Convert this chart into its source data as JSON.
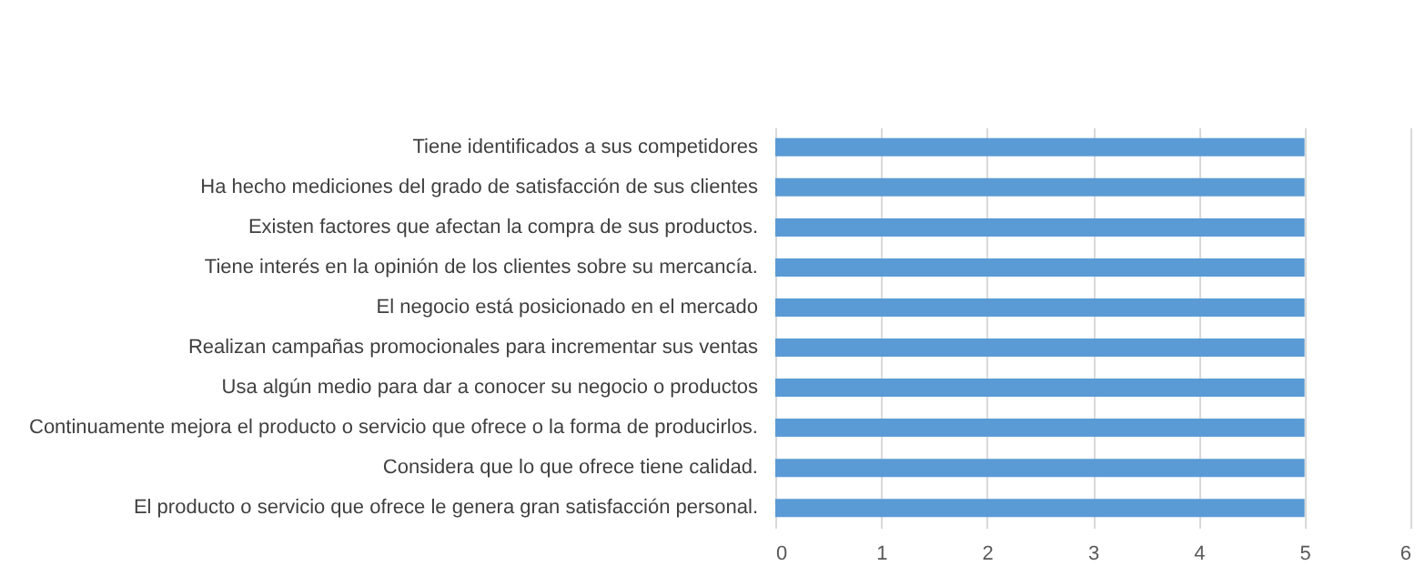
{
  "chart_data": {
    "type": "bar",
    "orientation": "horizontal",
    "categories": [
      "Tiene identificados a sus competidores",
      "Ha hecho mediciones del grado de satisfacción de sus clientes",
      "Existen factores que afectan la compra de sus productos.",
      "Tiene interés en la opinión de los clientes sobre su mercancía.",
      "El negocio está posicionado en el mercado",
      "Realizan campañas promocionales para incrementar sus ventas",
      "Usa algún medio para dar a conocer su negocio o productos",
      "Continuamente mejora el producto o servicio que ofrece o la forma de producirlos.",
      "Considera que lo que ofrece tiene calidad.",
      "El producto o servicio que ofrece le genera gran satisfacción personal."
    ],
    "values": [
      5,
      5,
      5,
      5,
      5,
      5,
      5,
      5,
      5,
      5
    ],
    "color": "#5b9bd5",
    "xlim": [
      0,
      6
    ],
    "xticks": [
      0,
      1,
      2,
      3,
      4,
      5,
      6
    ],
    "grid": "x"
  }
}
